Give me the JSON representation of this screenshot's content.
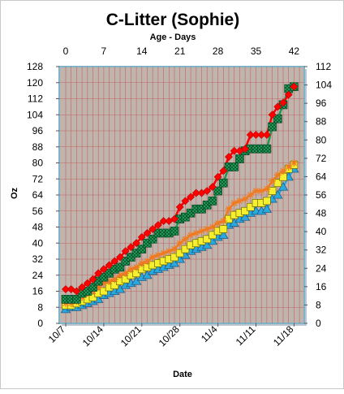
{
  "chart_data": {
    "type": "line",
    "title": "C-Litter (Sophie)",
    "xlabel": "Date",
    "ylabel": "Oz",
    "x2label": "Age - Days",
    "x_range_days": [
      0,
      43
    ],
    "ylim": [
      0,
      128
    ],
    "y2lim": [
      0,
      112
    ],
    "grid": true,
    "date_ticks": [
      {
        "day": 0,
        "label": "10/7"
      },
      {
        "day": 7,
        "label": "10/14"
      },
      {
        "day": 14,
        "label": "10/21"
      },
      {
        "day": 21,
        "label": "10/28"
      },
      {
        "day": 28,
        "label": "11/4"
      },
      {
        "day": 35,
        "label": "11/11"
      },
      {
        "day": 42,
        "label": "11/18"
      }
    ],
    "age_ticks": [
      "0",
      "7",
      "14",
      "21",
      "28",
      "35",
      "42"
    ],
    "y_ticks": [
      "0",
      "8",
      "16",
      "24",
      "32",
      "40",
      "48",
      "56",
      "64",
      "72",
      "80",
      "88",
      "96",
      "104",
      "112",
      "120",
      "128"
    ],
    "y2_ticks": [
      "0",
      "8",
      "16",
      "24",
      "32",
      "40",
      "48",
      "56",
      "64",
      "72",
      "80",
      "88",
      "96",
      "104",
      "112"
    ],
    "colors": {
      "background": "#c0b4ad",
      "grid": "#c25050",
      "red": "#ff0000",
      "green": "#1e9a56",
      "orange": "#f07a22",
      "yellow": "#f5ef30",
      "blue": "#2aa8e0"
    },
    "series": [
      {
        "color": "red",
        "marker": "diamond",
        "points": [
          [
            0,
            17
          ],
          [
            1,
            17
          ],
          [
            2,
            16
          ],
          [
            3,
            18
          ],
          [
            4,
            20
          ],
          [
            5,
            22
          ],
          [
            6,
            25
          ],
          [
            7,
            27
          ],
          [
            8,
            29
          ],
          [
            9,
            31
          ],
          [
            10,
            33
          ],
          [
            11,
            36
          ],
          [
            12,
            38
          ],
          [
            13,
            40
          ],
          [
            14,
            43
          ],
          [
            15,
            45
          ],
          [
            16,
            47
          ],
          [
            17,
            49
          ],
          [
            18,
            51
          ],
          [
            19,
            51
          ],
          [
            20,
            52
          ],
          [
            21,
            58
          ],
          [
            22,
            61
          ],
          [
            23,
            63
          ],
          [
            24,
            65
          ],
          [
            25,
            65
          ],
          [
            26,
            66
          ],
          [
            27,
            68
          ],
          [
            28,
            73
          ],
          [
            29,
            76
          ],
          [
            30,
            83
          ],
          [
            31,
            86
          ],
          [
            32,
            86
          ],
          [
            33,
            87
          ],
          [
            34,
            94
          ],
          [
            35,
            94
          ],
          [
            36,
            94
          ],
          [
            37,
            94
          ],
          [
            38,
            104
          ],
          [
            39,
            108
          ],
          [
            40,
            110
          ],
          [
            41,
            114
          ],
          [
            42,
            118
          ]
        ]
      },
      {
        "color": "green",
        "marker": "checked-square",
        "points": [
          [
            0,
            12
          ],
          [
            1,
            12
          ],
          [
            2,
            12
          ],
          [
            3,
            15
          ],
          [
            4,
            16
          ],
          [
            5,
            18
          ],
          [
            6,
            21
          ],
          [
            7,
            23
          ],
          [
            8,
            25
          ],
          [
            9,
            27
          ],
          [
            10,
            28
          ],
          [
            11,
            31
          ],
          [
            12,
            33
          ],
          [
            13,
            35
          ],
          [
            14,
            37
          ],
          [
            15,
            40
          ],
          [
            16,
            42
          ],
          [
            17,
            45
          ],
          [
            18,
            45
          ],
          [
            19,
            45
          ],
          [
            20,
            46
          ],
          [
            21,
            52
          ],
          [
            22,
            53
          ],
          [
            23,
            55
          ],
          [
            24,
            57
          ],
          [
            25,
            57
          ],
          [
            26,
            59
          ],
          [
            27,
            61
          ],
          [
            28,
            66
          ],
          [
            29,
            70
          ],
          [
            30,
            78
          ],
          [
            31,
            78
          ],
          [
            32,
            82
          ],
          [
            33,
            86
          ],
          [
            34,
            87
          ],
          [
            35,
            87
          ],
          [
            36,
            87
          ],
          [
            37,
            87
          ],
          [
            38,
            98
          ],
          [
            39,
            102
          ],
          [
            40,
            109
          ],
          [
            41,
            117
          ],
          [
            42,
            118
          ]
        ]
      },
      {
        "color": "orange",
        "marker": "star",
        "points": [
          [
            0,
            10
          ],
          [
            1,
            10
          ],
          [
            2,
            11
          ],
          [
            3,
            13
          ],
          [
            4,
            15
          ],
          [
            5,
            16
          ],
          [
            6,
            18
          ],
          [
            7,
            20
          ],
          [
            8,
            21
          ],
          [
            9,
            22
          ],
          [
            10,
            24
          ],
          [
            11,
            25
          ],
          [
            12,
            27
          ],
          [
            13,
            28
          ],
          [
            14,
            30
          ],
          [
            15,
            31
          ],
          [
            16,
            33
          ],
          [
            17,
            34
          ],
          [
            18,
            35
          ],
          [
            19,
            36
          ],
          [
            20,
            37
          ],
          [
            21,
            40
          ],
          [
            22,
            42
          ],
          [
            23,
            44
          ],
          [
            24,
            45
          ],
          [
            25,
            46
          ],
          [
            26,
            47
          ],
          [
            27,
            48
          ],
          [
            28,
            50
          ],
          [
            29,
            51
          ],
          [
            30,
            57
          ],
          [
            31,
            60
          ],
          [
            32,
            61
          ],
          [
            33,
            62
          ],
          [
            34,
            64
          ],
          [
            35,
            66
          ],
          [
            36,
            66
          ],
          [
            37,
            67
          ],
          [
            38,
            71
          ],
          [
            39,
            74
          ],
          [
            40,
            76
          ],
          [
            41,
            78
          ],
          [
            42,
            80
          ]
        ]
      },
      {
        "color": "yellow",
        "marker": "square",
        "points": [
          [
            0,
            9
          ],
          [
            1,
            9
          ],
          [
            2,
            10
          ],
          [
            3,
            11
          ],
          [
            4,
            12
          ],
          [
            5,
            13
          ],
          [
            6,
            15
          ],
          [
            7,
            16
          ],
          [
            8,
            18
          ],
          [
            9,
            19
          ],
          [
            10,
            21
          ],
          [
            11,
            22
          ],
          [
            12,
            24
          ],
          [
            13,
            25
          ],
          [
            14,
            27
          ],
          [
            15,
            28
          ],
          [
            16,
            29
          ],
          [
            17,
            30
          ],
          [
            18,
            31
          ],
          [
            19,
            32
          ],
          [
            20,
            33
          ],
          [
            21,
            35
          ],
          [
            22,
            37
          ],
          [
            23,
            39
          ],
          [
            24,
            40
          ],
          [
            25,
            41
          ],
          [
            26,
            42
          ],
          [
            27,
            44
          ],
          [
            28,
            46
          ],
          [
            29,
            47
          ],
          [
            30,
            52
          ],
          [
            31,
            54
          ],
          [
            32,
            55
          ],
          [
            33,
            56
          ],
          [
            34,
            58
          ],
          [
            35,
            60
          ],
          [
            36,
            60
          ],
          [
            37,
            61
          ],
          [
            38,
            66
          ],
          [
            39,
            70
          ],
          [
            40,
            73
          ],
          [
            41,
            77
          ],
          [
            42,
            79
          ]
        ]
      },
      {
        "color": "blue",
        "marker": "triangle",
        "points": [
          [
            0,
            7
          ],
          [
            1,
            8
          ],
          [
            2,
            8
          ],
          [
            3,
            9
          ],
          [
            4,
            10
          ],
          [
            5,
            11
          ],
          [
            6,
            12
          ],
          [
            7,
            14
          ],
          [
            8,
            15
          ],
          [
            9,
            16
          ],
          [
            10,
            17
          ],
          [
            11,
            19
          ],
          [
            12,
            20
          ],
          [
            13,
            21
          ],
          [
            14,
            23
          ],
          [
            15,
            24
          ],
          [
            16,
            26
          ],
          [
            17,
            27
          ],
          [
            18,
            28
          ],
          [
            19,
            29
          ],
          [
            20,
            30
          ],
          [
            21,
            32
          ],
          [
            22,
            34
          ],
          [
            23,
            36
          ],
          [
            24,
            37
          ],
          [
            25,
            38
          ],
          [
            26,
            39
          ],
          [
            27,
            41
          ],
          [
            28,
            43
          ],
          [
            29,
            44
          ],
          [
            30,
            49
          ],
          [
            31,
            50
          ],
          [
            32,
            52
          ],
          [
            33,
            53
          ],
          [
            34,
            55
          ],
          [
            35,
            56
          ],
          [
            36,
            56
          ],
          [
            37,
            57
          ],
          [
            38,
            62
          ],
          [
            39,
            64
          ],
          [
            40,
            68
          ],
          [
            41,
            73
          ],
          [
            42,
            77
          ]
        ]
      }
    ]
  }
}
